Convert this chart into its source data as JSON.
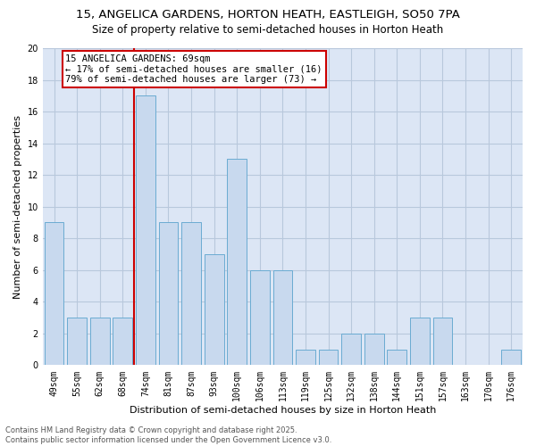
{
  "title_line1": "15, ANGELICA GARDENS, HORTON HEATH, EASTLEIGH, SO50 7PA",
  "title_line2": "Size of property relative to semi-detached houses in Horton Heath",
  "xlabel": "Distribution of semi-detached houses by size in Horton Heath",
  "ylabel": "Number of semi-detached properties",
  "categories": [
    "49sqm",
    "55sqm",
    "62sqm",
    "68sqm",
    "74sqm",
    "81sqm",
    "87sqm",
    "93sqm",
    "100sqm",
    "106sqm",
    "113sqm",
    "119sqm",
    "125sqm",
    "132sqm",
    "138sqm",
    "144sqm",
    "151sqm",
    "157sqm",
    "163sqm",
    "170sqm",
    "176sqm"
  ],
  "values": [
    9,
    3,
    3,
    3,
    17,
    9,
    9,
    7,
    13,
    6,
    6,
    1,
    1,
    2,
    2,
    1,
    3,
    3,
    0,
    0,
    1
  ],
  "bar_color": "#c8d9ee",
  "bar_edge_color": "#6aabd2",
  "vline_x": 3.5,
  "vline_color": "#cc0000",
  "annotation_text": "15 ANGELICA GARDENS: 69sqm\n← 17% of semi-detached houses are smaller (16)\n79% of semi-detached houses are larger (73) →",
  "annotation_box_color": "#cc0000",
  "ylim": [
    0,
    20
  ],
  "yticks": [
    0,
    2,
    4,
    6,
    8,
    10,
    12,
    14,
    16,
    18,
    20
  ],
  "background_color": "#ffffff",
  "plot_bg_color": "#dce6f5",
  "grid_color": "#b8c8dc",
  "footer_text": "Contains HM Land Registry data © Crown copyright and database right 2025.\nContains public sector information licensed under the Open Government Licence v3.0.",
  "title_fontsize": 9.5,
  "subtitle_fontsize": 8.5,
  "axis_label_fontsize": 8,
  "tick_fontsize": 7,
  "annotation_fontsize": 7.5,
  "footer_fontsize": 6
}
